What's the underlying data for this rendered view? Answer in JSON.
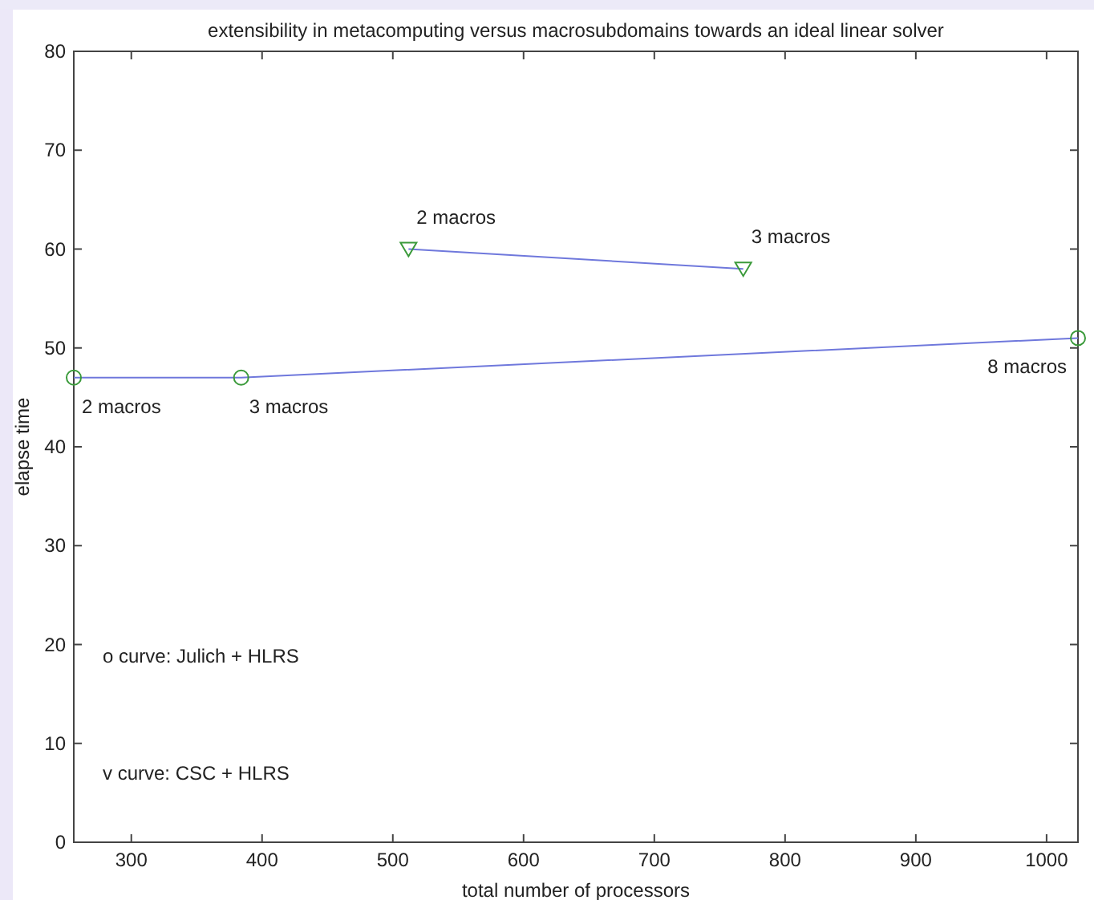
{
  "chart_data": {
    "type": "line",
    "title": "extensibility in metacomputing versus macrosubdomains towards an ideal linear solver",
    "xlabel": "total number of processors",
    "ylabel": "elapse time",
    "series": [
      {
        "color": "#6f78dc",
        "marker": "circle",
        "x": [
          256,
          384,
          1024
        ],
        "values": [
          47,
          47,
          51
        ]
      },
      {
        "color": "#6f78dc",
        "marker": "triangle",
        "x": [
          512,
          768
        ],
        "values": [
          60,
          58
        ]
      }
    ],
    "xlim": [
      256,
      1024
    ],
    "xticks": [
      300,
      400,
      500,
      600,
      700,
      800,
      900,
      1000
    ],
    "ylim": [
      0,
      80
    ],
    "yticks": [
      0,
      10,
      20,
      30,
      40,
      50,
      60,
      70,
      80
    ],
    "grid": false,
    "annotations": [
      {
        "text": "2 macros",
        "x": 256,
        "y": 47
      },
      {
        "text": "3 macros",
        "x": 384,
        "y": 47
      },
      {
        "text": "8 macros",
        "x": 1024,
        "y": 51
      },
      {
        "text": "2 macros",
        "x": 512,
        "y": 60
      },
      {
        "text": "3 macros",
        "x": 768,
        "y": 58
      },
      "o curve: Julich + HLRS",
      "v curve: CSC + HLRS"
    ]
  }
}
